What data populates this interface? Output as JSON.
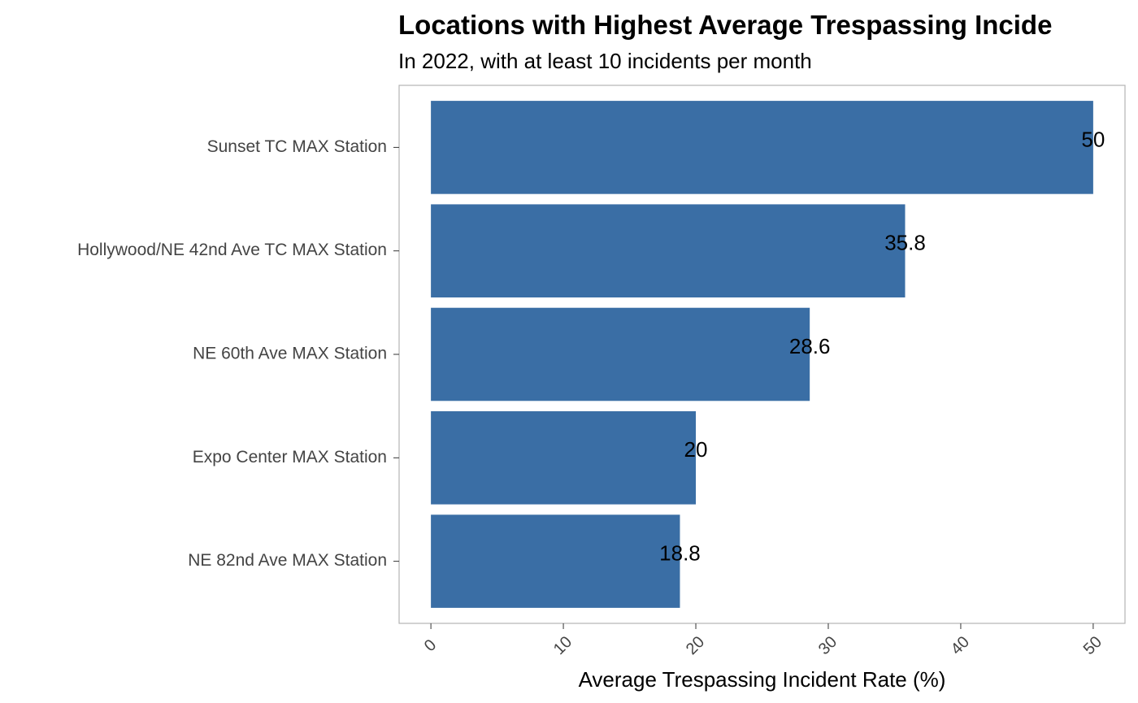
{
  "chart_data": {
    "type": "bar",
    "orientation": "horizontal",
    "title": "Locations with Highest Average Trespassing Incide",
    "subtitle": "In 2022, with at least 10 incidents per month",
    "xlabel": "Average Trespassing Incident Rate (%)",
    "ylabel": "",
    "categories": [
      "Sunset TC MAX Station",
      "Hollywood/NE 42nd Ave TC MAX Station",
      "NE 60th Ave MAX Station",
      "Expo Center MAX Station",
      "NE 82nd Ave MAX Station"
    ],
    "values": [
      50,
      35.8,
      28.6,
      20,
      18.8
    ],
    "data_labels": [
      "50",
      "35.8",
      "28.6",
      "20",
      "18.8"
    ],
    "xlim": [
      -2.4,
      52.4
    ],
    "xticks": [
      0,
      10,
      20,
      30,
      40,
      50
    ],
    "xtick_labels": [
      "0",
      "10",
      "20",
      "30",
      "40",
      "50"
    ],
    "grid": false,
    "legend": "none",
    "bar_color": "#3A6EA5",
    "panel_border_color": "#B3B3B3"
  }
}
